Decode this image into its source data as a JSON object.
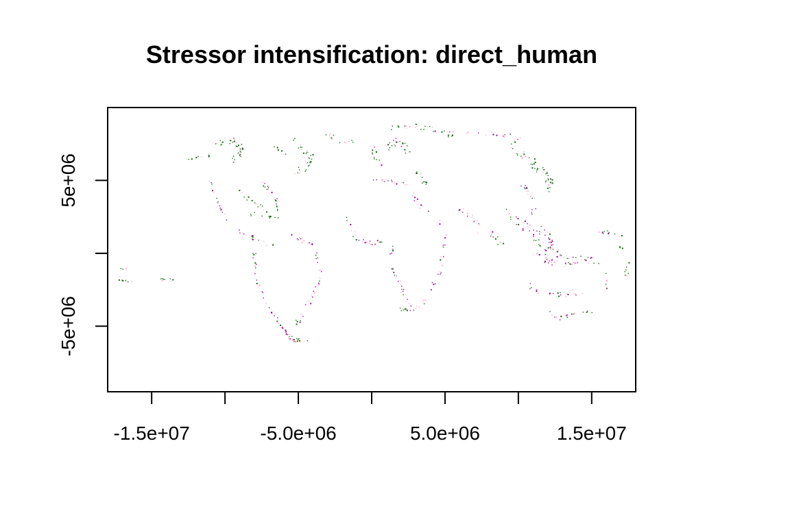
{
  "chart_data": {
    "type": "map",
    "title": "Stressor intensification: direct_human",
    "xlim": [
      -18000000,
      18000000
    ],
    "ylim": [
      -9500000,
      10000000
    ],
    "x_ticks": [
      {
        "value": -15000000,
        "label": "-1.5e+07"
      },
      {
        "value": -10000000,
        "label": ""
      },
      {
        "value": -5000000,
        "label": "-5.0e+06"
      },
      {
        "value": 0,
        "label": ""
      },
      {
        "value": 5000000,
        "label": "5.0e+06"
      },
      {
        "value": 10000000,
        "label": ""
      },
      {
        "value": 15000000,
        "label": "1.5e+07"
      }
    ],
    "y_ticks": [
      {
        "value": 5000000,
        "label": "5e+06"
      },
      {
        "value": 0,
        "label": ""
      },
      {
        "value": -5000000,
        "label": "-5e+06"
      }
    ],
    "colors": {
      "increase": "#006400",
      "decrease": "#8b008b",
      "mild": "#ff69b4",
      "brown": "#8b4513"
    }
  }
}
